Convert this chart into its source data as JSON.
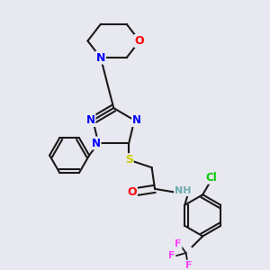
{
  "background_color": "#e8e8f0",
  "bond_color": "#1a1a1a",
  "atom_colors": {
    "N": "#0000ff",
    "O": "#ff0000",
    "S": "#cccc00",
    "Cl": "#00cc00",
    "F": "#ff44ff",
    "H": "#6aafaf",
    "C": "#1a1a1a"
  },
  "figsize": [
    3.0,
    3.0
  ],
  "dpi": 100
}
